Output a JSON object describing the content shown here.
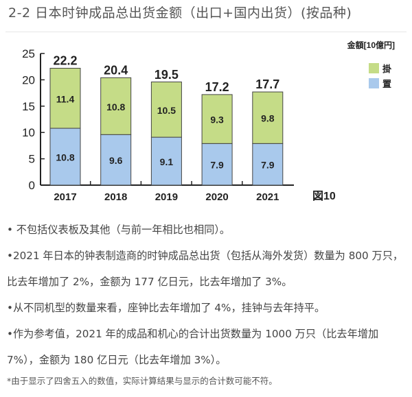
{
  "title": "2-2 日本时钟成品总出货金额（出口+国内出货）(按品种)",
  "chart_data": {
    "type": "bar",
    "stacked": true,
    "unit_label": "金額[10億円]",
    "figure_label": "図10",
    "categories": [
      "2017",
      "2018",
      "2019",
      "2020",
      "2021"
    ],
    "series": [
      {
        "name": "置",
        "color": "#a9c9ec",
        "values": [
          10.8,
          9.6,
          9.1,
          7.9,
          7.9
        ]
      },
      {
        "name": "掛",
        "color": "#c5dc87",
        "values": [
          11.4,
          10.8,
          10.5,
          9.3,
          9.8
        ]
      }
    ],
    "totals": [
      22.2,
      20.4,
      19.5,
      17.2,
      17.7
    ],
    "ylim": [
      0,
      25
    ],
    "yticks": [
      0,
      5,
      10,
      15,
      20,
      25
    ],
    "grid": false,
    "legend": "top-right"
  },
  "paragraphs": [
    "•  不包括仪表板及其他（与前一年相比也相同）。",
    "•2021 年日本的钟表制造商的时钟成品总出货（包括从海外发货）数量为 800 万只，比去年增加了 2%，金额为 177 亿日元，比去年增加了 3%。",
    "•从不同机型的数量来看，座钟比去年增加了 4%，挂钟与去年持平。",
    "•作为参考值，2021 年的成品和机心的合计出货数量为 1000 万只（比去年增加 7%），金额为 180 亿日元（比去年增加 3%）。"
  ],
  "note": "*由于显示了四舍五入的数值，实际计算结果与显示的合计数可能不符。"
}
